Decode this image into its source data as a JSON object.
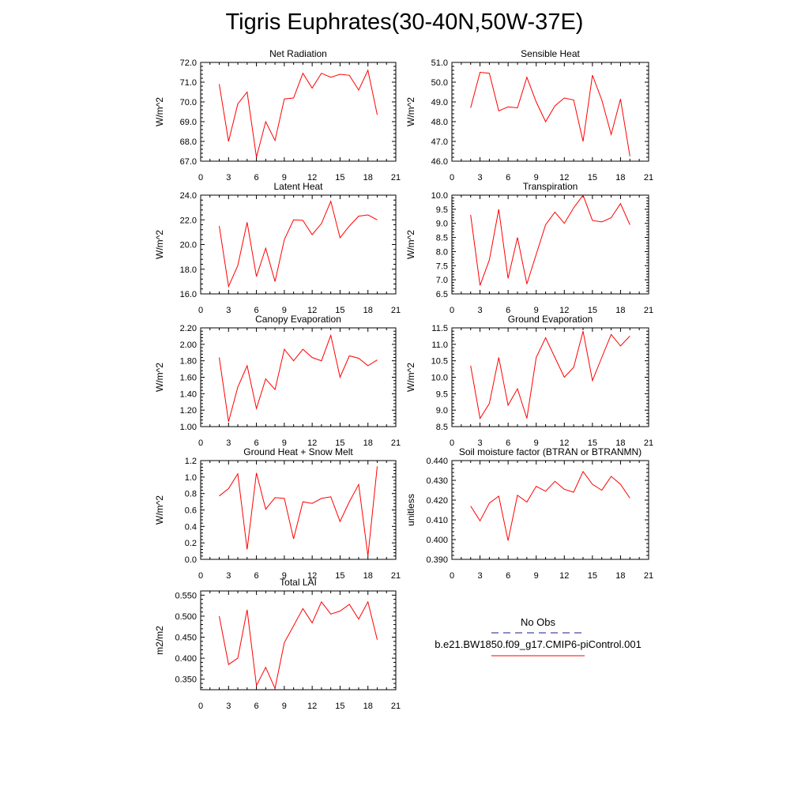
{
  "title": "Tigris Euphrates(30-40N,50W-37E)",
  "colors": {
    "model_line": "#ff0000",
    "obs_line": "#1a1a8c",
    "axis": "#000000"
  },
  "legend": {
    "obs_label": "No Obs",
    "model_label": "b.e21.BW1850.f09_g17.CMIP6-piControl.001"
  },
  "chart_data": [
    {
      "type": "line",
      "title": "Net Radiation",
      "ylabel": "W/m^2",
      "xlim": [
        0,
        21
      ],
      "xticks": [
        0,
        3,
        6,
        9,
        12,
        15,
        18,
        21
      ],
      "ylim": [
        67.0,
        72.0
      ],
      "yticks": [
        "67.0",
        "68.0",
        "69.0",
        "70.0",
        "71.0",
        "72.0"
      ],
      "x": [
        2,
        3,
        4,
        5,
        6,
        7,
        8,
        9,
        10,
        11,
        12,
        13,
        14,
        15,
        16,
        17,
        18,
        19
      ],
      "series": [
        {
          "values": [
            70.9,
            68.0,
            69.9,
            70.5,
            67.2,
            69.0,
            68.05,
            70.15,
            70.2,
            71.45,
            70.7,
            71.45,
            71.25,
            71.4,
            71.35,
            70.6,
            71.6,
            69.35
          ]
        }
      ]
    },
    {
      "type": "line",
      "title": "Sensible Heat",
      "ylabel": "W/m^2",
      "xlim": [
        0,
        21
      ],
      "xticks": [
        0,
        3,
        6,
        9,
        12,
        15,
        18,
        21
      ],
      "ylim": [
        46.0,
        51.0
      ],
      "yticks": [
        "46.0",
        "47.0",
        "48.0",
        "49.0",
        "50.0",
        "51.0"
      ],
      "x": [
        2,
        3,
        4,
        5,
        6,
        7,
        8,
        9,
        10,
        11,
        12,
        13,
        14,
        15,
        16,
        17,
        18,
        19
      ],
      "series": [
        {
          "values": [
            48.7,
            50.5,
            50.45,
            48.55,
            48.75,
            48.7,
            50.25,
            49.0,
            48.0,
            48.8,
            49.2,
            49.1,
            47.0,
            50.35,
            49.1,
            47.35,
            49.15,
            46.25
          ]
        }
      ]
    },
    {
      "type": "line",
      "title": "Latent Heat",
      "ylabel": "W/m^2",
      "xlim": [
        0,
        21
      ],
      "xticks": [
        0,
        3,
        6,
        9,
        12,
        15,
        18,
        21
      ],
      "ylim": [
        16.0,
        24.0
      ],
      "yticks": [
        "16.0",
        "18.0",
        "20.0",
        "22.0",
        "24.0"
      ],
      "x": [
        2,
        3,
        4,
        5,
        6,
        7,
        8,
        9,
        10,
        11,
        12,
        13,
        14,
        15,
        16,
        17,
        18,
        19
      ],
      "series": [
        {
          "values": [
            21.5,
            16.6,
            18.3,
            21.8,
            17.4,
            19.7,
            17.0,
            20.4,
            22.0,
            21.95,
            20.8,
            21.7,
            23.5,
            20.55,
            21.5,
            22.3,
            22.4,
            22.0
          ]
        }
      ]
    },
    {
      "type": "line",
      "title": "Transpiration",
      "ylabel": "W/m^2",
      "xlim": [
        0,
        21
      ],
      "xticks": [
        0,
        3,
        6,
        9,
        12,
        15,
        18,
        21
      ],
      "ylim": [
        6.5,
        10.0
      ],
      "yticks": [
        "6.5",
        "7.0",
        "7.5",
        "8.0",
        "8.5",
        "9.0",
        "9.5",
        "10.0"
      ],
      "x": [
        2,
        3,
        4,
        5,
        6,
        7,
        8,
        9,
        10,
        11,
        12,
        13,
        14,
        15,
        16,
        17,
        18,
        19
      ],
      "series": [
        {
          "values": [
            9.3,
            6.8,
            7.7,
            9.5,
            7.05,
            8.5,
            6.85,
            7.9,
            8.95,
            9.4,
            9.0,
            9.55,
            10.0,
            9.1,
            9.05,
            9.2,
            9.7,
            8.95
          ]
        }
      ]
    },
    {
      "type": "line",
      "title": "Canopy Evaporation",
      "ylabel": "W/m^2",
      "xlim": [
        0,
        21
      ],
      "xticks": [
        0,
        3,
        6,
        9,
        12,
        15,
        18,
        21
      ],
      "ylim": [
        1.0,
        2.2
      ],
      "yticks": [
        "1.00",
        "1.20",
        "1.40",
        "1.60",
        "1.80",
        "2.00",
        "2.20"
      ],
      "x": [
        2,
        3,
        4,
        5,
        6,
        7,
        8,
        9,
        10,
        11,
        12,
        13,
        14,
        15,
        16,
        17,
        18,
        19
      ],
      "series": [
        {
          "values": [
            1.84,
            1.06,
            1.48,
            1.74,
            1.22,
            1.58,
            1.45,
            1.94,
            1.8,
            1.94,
            1.84,
            1.8,
            2.11,
            1.6,
            1.86,
            1.83,
            1.74,
            1.81
          ]
        }
      ]
    },
    {
      "type": "line",
      "title": "Ground Evaporation",
      "ylabel": "W/m^2",
      "xlim": [
        0,
        21
      ],
      "xticks": [
        0,
        3,
        6,
        9,
        12,
        15,
        18,
        21
      ],
      "ylim": [
        8.5,
        11.5
      ],
      "yticks": [
        "8.5",
        "9.0",
        "9.5",
        "10.0",
        "10.5",
        "11.0",
        "11.5"
      ],
      "x": [
        2,
        3,
        4,
        5,
        6,
        7,
        8,
        9,
        10,
        11,
        12,
        13,
        14,
        15,
        16,
        17,
        18,
        19
      ],
      "series": [
        {
          "values": [
            10.35,
            8.75,
            9.2,
            10.6,
            9.15,
            9.65,
            8.75,
            10.6,
            11.2,
            10.6,
            10.0,
            10.3,
            11.4,
            9.9,
            10.6,
            11.3,
            10.95,
            11.25
          ]
        }
      ]
    },
    {
      "type": "line",
      "title": "Ground Heat + Snow Melt",
      "ylabel": "W/m^2",
      "xlim": [
        0,
        21
      ],
      "xticks": [
        0,
        3,
        6,
        9,
        12,
        15,
        18,
        21
      ],
      "ylim": [
        0.0,
        1.2
      ],
      "yticks": [
        "0.0",
        "0.2",
        "0.4",
        "0.6",
        "0.8",
        "1.0",
        "1.2"
      ],
      "x": [
        2,
        3,
        4,
        5,
        6,
        7,
        8,
        9,
        10,
        11,
        12,
        13,
        14,
        15,
        16,
        17,
        18,
        19
      ],
      "series": [
        {
          "values": [
            0.77,
            0.86,
            1.04,
            0.12,
            1.05,
            0.61,
            0.75,
            0.74,
            0.25,
            0.7,
            0.68,
            0.74,
            0.76,
            0.46,
            0.7,
            0.91,
            0.04,
            1.13
          ]
        }
      ]
    },
    {
      "type": "line",
      "title": "Soil moisture factor (BTRAN or BTRANMN)",
      "ylabel": "unitless",
      "xlim": [
        0,
        21
      ],
      "xticks": [
        0,
        3,
        6,
        9,
        12,
        15,
        18,
        21
      ],
      "ylim": [
        0.39,
        0.44
      ],
      "yticks": [
        "0.390",
        "0.400",
        "0.410",
        "0.420",
        "0.430",
        "0.440"
      ],
      "x": [
        2,
        3,
        4,
        5,
        6,
        7,
        8,
        9,
        10,
        11,
        12,
        13,
        14,
        15,
        16,
        17,
        18,
        19
      ],
      "series": [
        {
          "values": [
            0.417,
            0.4095,
            0.4185,
            0.422,
            0.3995,
            0.4225,
            0.419,
            0.427,
            0.4245,
            0.4295,
            0.4255,
            0.424,
            0.4345,
            0.428,
            0.425,
            0.432,
            0.428,
            0.421
          ]
        }
      ]
    },
    {
      "type": "line",
      "title": "Total LAI",
      "ylabel": "m2/m2",
      "xlim": [
        0,
        21
      ],
      "xticks": [
        0,
        3,
        6,
        9,
        12,
        15,
        18,
        21
      ],
      "ylim": [
        0.325,
        0.56
      ],
      "yticks": [
        "0.350",
        "0.400",
        "0.450",
        "0.500",
        "0.550"
      ],
      "x": [
        2,
        3,
        4,
        5,
        6,
        7,
        8,
        9,
        10,
        11,
        12,
        13,
        14,
        15,
        16,
        17,
        18,
        19
      ],
      "series": [
        {
          "values": [
            0.5,
            0.385,
            0.4,
            0.515,
            0.335,
            0.378,
            0.328,
            0.437,
            0.477,
            0.518,
            0.484,
            0.534,
            0.505,
            0.512,
            0.528,
            0.493,
            0.534,
            0.444
          ]
        }
      ]
    }
  ]
}
